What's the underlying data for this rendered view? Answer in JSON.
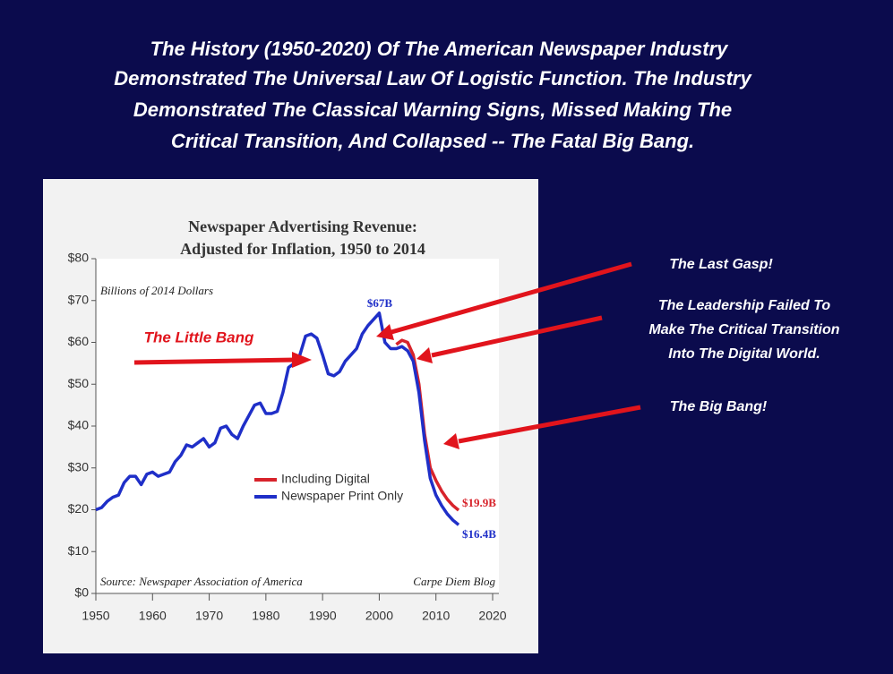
{
  "heading": [
    "The History (1950-2020) Of The American Newspaper Industry",
    "Demonstrated The Universal Law Of Logistic Function. The Industry",
    "Demonstrated The Classical Warning Signs, Missed Making The",
    "Critical Transition, And Collapsed -- The Fatal Big Bang."
  ],
  "chart_data": {
    "type": "line",
    "title": [
      "Newspaper Advertising Revenue:",
      "Adjusted for Inflation, 1950 to 2014"
    ],
    "ylabel": "Billions of 2014 Dollars",
    "source": "Source: Newspaper Association of America",
    "credit": "Carpe Diem Blog",
    "xlim": [
      1950,
      2020
    ],
    "xticks": [
      1950,
      1960,
      1970,
      1980,
      1990,
      2000,
      2010,
      2020
    ],
    "ylim": [
      0,
      80
    ],
    "yticks": [
      {
        "value": 0,
        "label": "$0"
      },
      {
        "value": 10,
        "label": "$10"
      },
      {
        "value": 20,
        "label": "$20"
      },
      {
        "value": 30,
        "label": "$30"
      },
      {
        "value": 40,
        "label": "$40"
      },
      {
        "value": 50,
        "label": "$50"
      },
      {
        "value": 60,
        "label": "$60"
      },
      {
        "value": 70,
        "label": "$70"
      },
      {
        "value": 80,
        "label": "$80"
      }
    ],
    "grid": false,
    "series": [
      {
        "name": "Including Digital",
        "color": "#d7232b",
        "x": [
          2003,
          2004,
          2005,
          2006,
          2007,
          2008,
          2009,
          2010,
          2011,
          2012,
          2013,
          2014
        ],
        "values": [
          59.5,
          60.5,
          60,
          57,
          50,
          38,
          30,
          27,
          24.5,
          22.5,
          21,
          19.9
        ]
      },
      {
        "name": "Newspaper Print Only",
        "color": "#1f2fc8",
        "x": [
          1950,
          1951,
          1952,
          1953,
          1954,
          1955,
          1956,
          1957,
          1958,
          1959,
          1960,
          1961,
          1962,
          1963,
          1964,
          1965,
          1966,
          1967,
          1968,
          1969,
          1970,
          1971,
          1972,
          1973,
          1974,
          1975,
          1976,
          1977,
          1978,
          1979,
          1980,
          1981,
          1982,
          1983,
          1984,
          1985,
          1986,
          1987,
          1988,
          1989,
          1990,
          1991,
          1992,
          1993,
          1994,
          1995,
          1996,
          1997,
          1998,
          1999,
          2000,
          2001,
          2002,
          2003,
          2004,
          2005,
          2006,
          2007,
          2008,
          2009,
          2010,
          2011,
          2012,
          2013,
          2014
        ],
        "values": [
          20,
          20.5,
          22,
          23,
          23.5,
          26.5,
          28,
          28,
          26,
          28.5,
          29,
          28,
          28.5,
          29,
          31.5,
          33,
          35.5,
          35,
          36,
          37,
          35,
          36,
          39.5,
          40,
          38,
          37,
          40,
          42.5,
          45,
          45.5,
          43,
          43,
          43.5,
          48,
          54,
          55,
          57,
          61.5,
          62,
          61,
          57,
          52.5,
          52,
          53,
          55.5,
          57,
          58.5,
          62,
          64,
          65.5,
          67,
          60,
          58.5,
          58.5,
          59,
          58,
          55.5,
          48,
          36.5,
          27.5,
          23.5,
          21,
          19,
          17.5,
          16.4
        ]
      }
    ],
    "legend": "center",
    "annotations": [
      "$67B",
      "$19.9B",
      "$16.4B",
      "The Little Bang",
      "The Last Gasp!",
      "The Leadership Failed To",
      "Make The Critical Transition",
      "Into The Digital World.",
      "The Big Bang!"
    ]
  }
}
